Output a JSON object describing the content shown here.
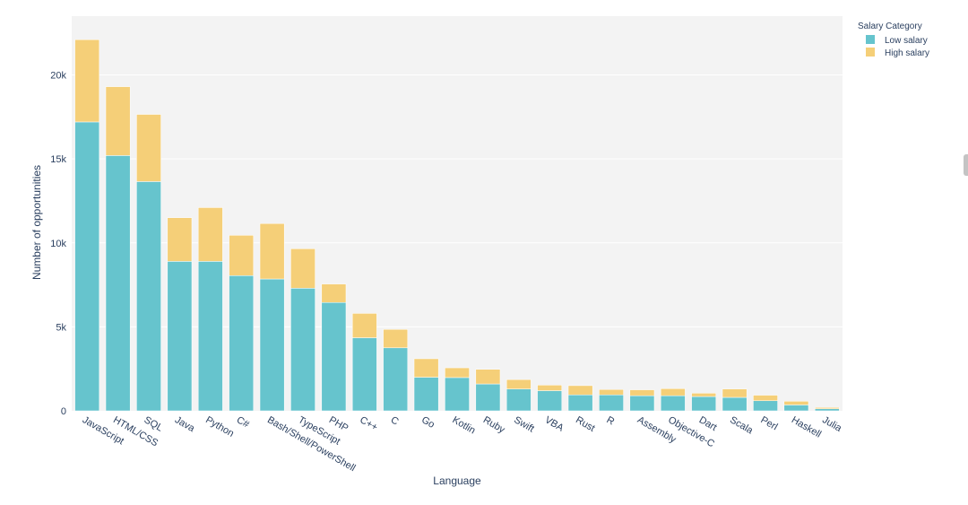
{
  "chart_data": {
    "type": "bar",
    "stacked": true,
    "title": "",
    "xlabel": "Language",
    "ylabel": "Number of opportunities",
    "ylim": [
      0,
      23500
    ],
    "yticks": [
      0,
      5000,
      10000,
      15000,
      20000
    ],
    "ytick_labels": [
      "0",
      "5k",
      "10k",
      "15k",
      "20k"
    ],
    "grid": true,
    "legend_title": "Salary Category",
    "legend_position": "top-right",
    "categories": [
      "JavaScript",
      "HTML/CSS",
      "SQL",
      "Java",
      "Python",
      "C#",
      "Bash/Shell/PowerShell",
      "TypeScript",
      "PHP",
      "C++",
      "C",
      "Go",
      "Kotlin",
      "Ruby",
      "Swift",
      "VBA",
      "Rust",
      "R",
      "Assembly",
      "Objective-C",
      "Dart",
      "Scala",
      "Perl",
      "Haskell",
      "Julia"
    ],
    "series": [
      {
        "name": "Low salary",
        "color": "#66c4cd",
        "values": [
          17200,
          15200,
          13650,
          8900,
          8900,
          8050,
          7850,
          7300,
          6450,
          4350,
          3750,
          2000,
          1980,
          1600,
          1300,
          1200,
          950,
          950,
          900,
          900,
          850,
          800,
          600,
          350,
          120
        ]
      },
      {
        "name": "High salary",
        "color": "#f5cf78",
        "values": [
          4900,
          4100,
          4000,
          2600,
          3200,
          2400,
          3300,
          2350,
          1100,
          1450,
          1100,
          1100,
          580,
          870,
          560,
          330,
          550,
          320,
          350,
          420,
          200,
          500,
          330,
          220,
          80
        ]
      }
    ]
  },
  "colors": {
    "plot_bg": "#f3f3f3",
    "grid": "#ffffff",
    "text": "#2a3f5f"
  }
}
